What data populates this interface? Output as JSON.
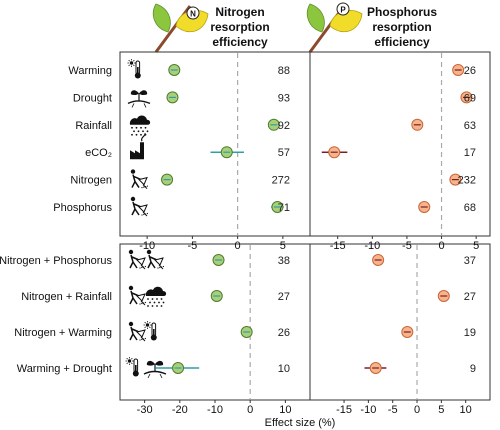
{
  "figure": {
    "xlabel": "Effect size (%)",
    "n_title": "Nitrogen resorption efficiency",
    "n_title_lines": [
      "Nitrogen",
      "resorption",
      "efficiency"
    ],
    "p_title": "Phosphorus resorption efficiency",
    "p_title_lines": [
      "Phosphorus",
      "resorption",
      "efficiency"
    ],
    "n_badge": "N",
    "p_badge": "P"
  },
  "colors": {
    "nitrogen_fill": "#a9cf7a",
    "nitrogen_stroke": "#4f7d2a",
    "nitrogen_ci": "#2f9fa5",
    "phosphorus_fill": "#f7b48a",
    "phosphorus_stroke": "#c9653a",
    "phosphorus_ci": "#7a1f2a",
    "zero_line": "#aaaaaa",
    "leaf_green": "#8cc63f",
    "leaf_yellow": "#f2dc2a",
    "twig": "#8b4a2b"
  },
  "chart_data": [
    {
      "type": "scatter",
      "panel": "top-left",
      "response": "Nitrogen resorption efficiency",
      "xlim": [
        -13,
        8
      ],
      "xticks": [
        -10,
        -5,
        0,
        5
      ],
      "rows": [
        {
          "label": "Warming",
          "icon": "thermometer-sun-icon",
          "x": -7.0,
          "ci": [
            -7.3,
            -6.7
          ],
          "n": 88
        },
        {
          "label": "Drought",
          "icon": "dry-seedling-icon",
          "x": -7.2,
          "ci": [
            -7.6,
            -6.8
          ],
          "n": 93
        },
        {
          "label": "Rainfall",
          "icon": "rain-cloud-icon",
          "x": 4.0,
          "ci": [
            3.6,
            4.4
          ],
          "n": 92
        },
        {
          "label": "eCO₂",
          "icon": "factory-icon",
          "x": -1.2,
          "ci": [
            -3.0,
            0.7
          ],
          "n": 57
        },
        {
          "label": "Nitrogen",
          "icon": "fertilizer-spreader-icon",
          "x": -7.8,
          "ci": [
            -8.1,
            -7.5
          ],
          "n": 272
        },
        {
          "label": "Phosphorus",
          "icon": "fertilizer-spreader-icon",
          "x": 4.4,
          "ci": [
            3.7,
            5.1
          ],
          "n": 71
        }
      ]
    },
    {
      "type": "scatter",
      "panel": "top-right",
      "response": "Phosphorus resorption efficiency",
      "xlim": [
        -19,
        7
      ],
      "xticks": [
        -15,
        -10,
        -5,
        0,
        5
      ],
      "rows": [
        {
          "label": "Warming",
          "x": 2.4,
          "ci": [
            1.8,
            3.0
          ],
          "n": 26
        },
        {
          "label": "Drought",
          "x": 3.6,
          "ci": [
            2.8,
            4.4
          ],
          "n": 69
        },
        {
          "label": "Rainfall",
          "x": -3.5,
          "ci": [
            -4.0,
            -3.0
          ],
          "n": 63
        },
        {
          "label": "eCO₂",
          "x": -15.5,
          "ci": [
            -17.3,
            -13.6
          ],
          "n": 17
        },
        {
          "label": "Nitrogen",
          "x": 2.0,
          "ci": [
            1.6,
            2.4
          ],
          "n": 232
        },
        {
          "label": "Phosphorus",
          "x": -2.5,
          "ci": [
            -3.0,
            -2.0
          ],
          "n": 68
        }
      ]
    },
    {
      "type": "scatter",
      "panel": "bottom-left",
      "response": "Nitrogen resorption efficiency",
      "xlim": [
        -37,
        17
      ],
      "xticks": [
        -30,
        -20,
        -10,
        0,
        10
      ],
      "rows": [
        {
          "label": "Nitrogen + Phosphorus",
          "icons": [
            "fertilizer-spreader-icon",
            "fertilizer-spreader-icon"
          ],
          "x": -9.0,
          "ci": [
            -10.0,
            -8.0
          ],
          "n": 38
        },
        {
          "label": "Nitrogen + Rainfall",
          "icons": [
            "fertilizer-spreader-icon",
            "rain-cloud-icon"
          ],
          "x": -9.5,
          "ci": [
            -10.5,
            -8.5
          ],
          "n": 27
        },
        {
          "label": "Nitrogen + Warming",
          "icons": [
            "fertilizer-spreader-icon",
            "thermometer-sun-icon"
          ],
          "x": -1.0,
          "ci": [
            -1.8,
            -0.2
          ],
          "n": 26
        },
        {
          "label": "Warming + Drought",
          "icons": [
            "thermometer-sun-icon",
            "dry-seedling-icon"
          ],
          "x": -20.5,
          "ci": [
            -27.0,
            -14.5
          ],
          "n": 10
        }
      ]
    },
    {
      "type": "scatter",
      "panel": "bottom-right",
      "response": "Phosphorus resorption efficiency",
      "xlim": [
        -22,
        15
      ],
      "xticks": [
        -15,
        -10,
        -5,
        0,
        5,
        10
      ],
      "rows": [
        {
          "label": "Nitrogen + Phosphorus",
          "x": -8.0,
          "ci": [
            -8.8,
            -7.2
          ],
          "n": 37
        },
        {
          "label": "Nitrogen + Rainfall",
          "x": 5.5,
          "ci": [
            4.8,
            6.2
          ],
          "n": 27
        },
        {
          "label": "Nitrogen + Warming",
          "x": -2.0,
          "ci": [
            -2.7,
            -1.3
          ],
          "n": 19
        },
        {
          "label": "Warming + Drought",
          "x": -8.5,
          "ci": [
            -10.8,
            -6.3
          ],
          "n": 9
        }
      ]
    }
  ]
}
